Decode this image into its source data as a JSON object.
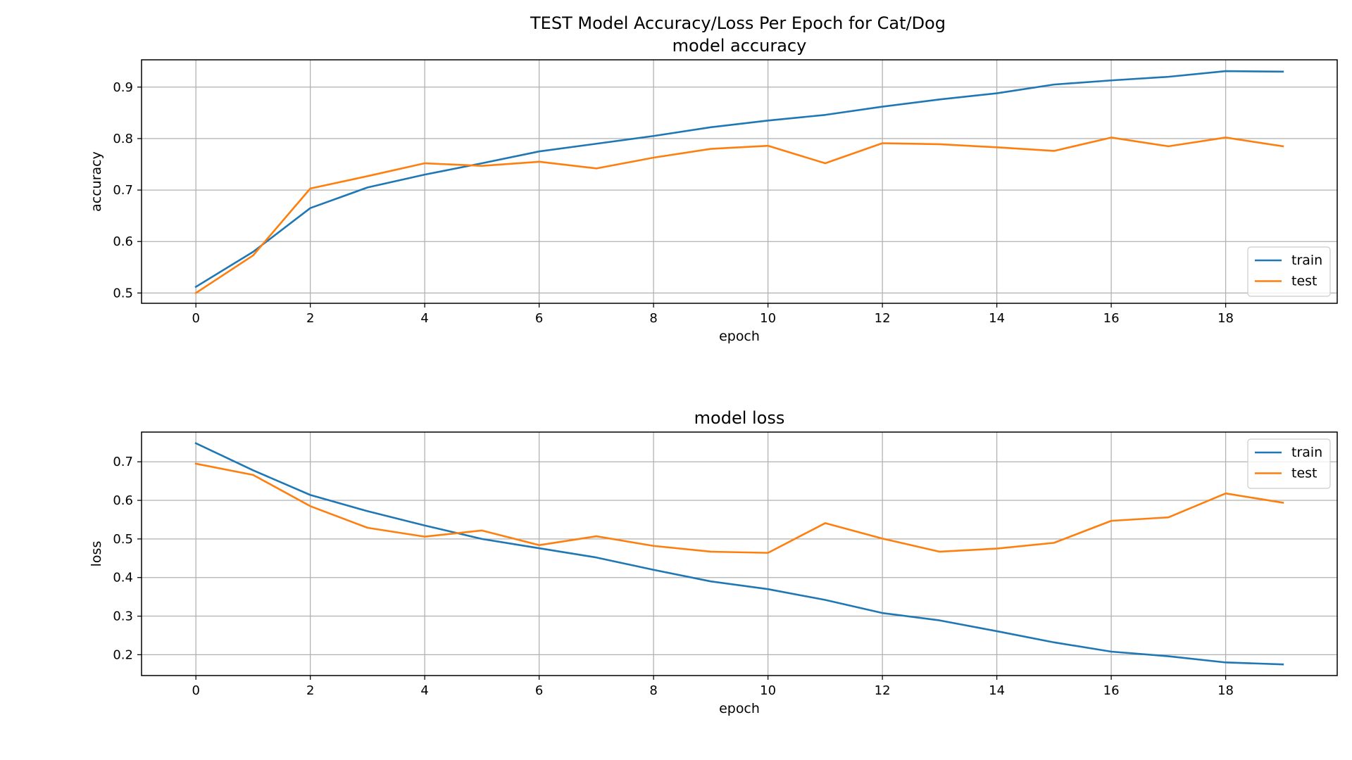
{
  "figure": {
    "suptitle": "TEST Model Accuracy/Loss Per Epoch for Cat/Dog"
  },
  "colors": {
    "train": "#1f77b4",
    "test": "#ff7f0e"
  },
  "chart_data": [
    {
      "type": "line",
      "title": "model accuracy",
      "xlabel": "epoch",
      "ylabel": "accuracy",
      "grid": true,
      "legend_position": "lower-right",
      "xlim": [
        -0.95,
        19.95
      ],
      "ylim": [
        0.48,
        0.953
      ],
      "xticks": [
        0,
        2,
        4,
        6,
        8,
        10,
        12,
        14,
        16,
        18
      ],
      "yticks": [
        0.5,
        0.6,
        0.7,
        0.8,
        0.9
      ],
      "x": [
        0,
        1,
        2,
        3,
        4,
        5,
        6,
        7,
        8,
        9,
        10,
        11,
        12,
        13,
        14,
        15,
        16,
        17,
        18,
        19
      ],
      "series": [
        {
          "name": "train",
          "values": [
            0.512,
            0.58,
            0.665,
            0.705,
            0.73,
            0.752,
            0.775,
            0.79,
            0.805,
            0.822,
            0.835,
            0.846,
            0.862,
            0.876,
            0.888,
            0.905,
            0.913,
            0.92,
            0.931,
            0.93
          ]
        },
        {
          "name": "test",
          "values": [
            0.5,
            0.573,
            0.703,
            0.727,
            0.752,
            0.747,
            0.755,
            0.742,
            0.763,
            0.78,
            0.786,
            0.752,
            0.791,
            0.789,
            0.783,
            0.776,
            0.802,
            0.785,
            0.802,
            0.785
          ]
        }
      ]
    },
    {
      "type": "line",
      "title": "model loss",
      "xlabel": "epoch",
      "ylabel": "loss",
      "grid": true,
      "legend_position": "upper-right",
      "xlim": [
        -0.95,
        19.95
      ],
      "ylim": [
        0.146,
        0.777
      ],
      "xticks": [
        0,
        2,
        4,
        6,
        8,
        10,
        12,
        14,
        16,
        18
      ],
      "yticks": [
        0.2,
        0.3,
        0.4,
        0.5,
        0.6,
        0.7
      ],
      "x": [
        0,
        1,
        2,
        3,
        4,
        5,
        6,
        7,
        8,
        9,
        10,
        11,
        12,
        13,
        14,
        15,
        16,
        17,
        18,
        19
      ],
      "series": [
        {
          "name": "train",
          "values": [
            0.748,
            0.678,
            0.614,
            0.572,
            0.535,
            0.5,
            0.476,
            0.452,
            0.42,
            0.39,
            0.37,
            0.342,
            0.308,
            0.289,
            0.261,
            0.232,
            0.208,
            0.196,
            0.18,
            0.175
          ]
        },
        {
          "name": "test",
          "values": [
            0.695,
            0.666,
            0.585,
            0.529,
            0.506,
            0.522,
            0.484,
            0.507,
            0.482,
            0.467,
            0.464,
            0.541,
            0.501,
            0.467,
            0.475,
            0.49,
            0.547,
            0.556,
            0.618,
            0.594
          ]
        }
      ]
    }
  ]
}
